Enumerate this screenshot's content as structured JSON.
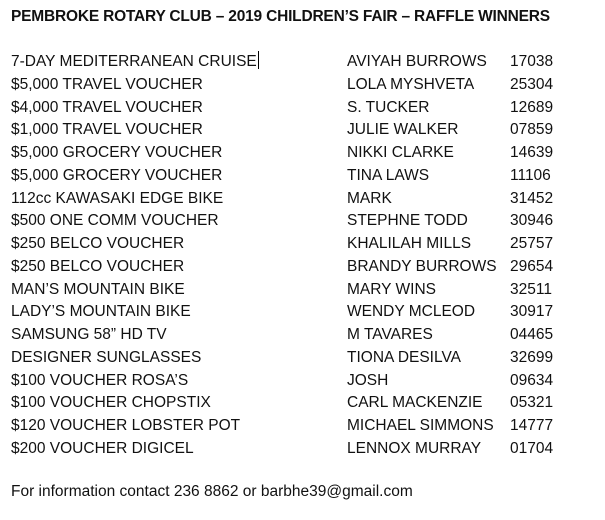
{
  "title": "PEMBROKE ROTARY CLUB – 2019 CHILDREN’S FAIR – RAFFLE WINNERS",
  "winners": [
    {
      "prize": "7-DAY MEDITERRANEAN CRUISE",
      "winner": "AVIYAH BURROWS",
      "ticket": "17038"
    },
    {
      "prize": "$5,000 TRAVEL VOUCHER",
      "winner": "LOLA MYSHVETA",
      "ticket": "25304"
    },
    {
      "prize": "$4,000 TRAVEL VOUCHER",
      "winner": " S. TUCKER",
      "ticket": "12689"
    },
    {
      "prize": "$1,000 TRAVEL VOUCHER",
      "winner": "JULIE WALKER",
      "ticket": "07859"
    },
    {
      "prize": "$5,000 GROCERY VOUCHER",
      "winner": "NIKKI CLARKE",
      "ticket": "14639"
    },
    {
      "prize": "$5,000 GROCERY VOUCHER",
      "winner": "TINA LAWS",
      "ticket": "11106"
    },
    {
      "prize": "112cc KAWASAKI EDGE BIKE",
      "winner": "MARK",
      "ticket": "31452"
    },
    {
      "prize": "$500 ONE COMM VOUCHER",
      "winner": "STEPHNE TODD",
      "ticket": "30946"
    },
    {
      "prize": "$250 BELCO VOUCHER",
      "winner": "KHALILAH MILLS",
      "ticket": "25757"
    },
    {
      "prize": "$250 BELCO VOUCHER",
      "winner": "BRANDY BURROWS",
      "ticket": "29654"
    },
    {
      "prize": "MAN’S MOUNTAIN BIKE",
      "winner": "MARY WINS",
      "ticket": "32511"
    },
    {
      "prize": "LADY’S MOUNTAIN BIKE",
      "winner": "WENDY MCLEOD",
      "ticket": "30917"
    },
    {
      "prize": "SAMSUNG 58” HD TV",
      "winner": "M TAVARES",
      "ticket": "04465"
    },
    {
      "prize": "DESIGNER SUNGLASSES",
      "winner": "TIONA DESILVA",
      "ticket": "32699"
    },
    {
      "prize": "$100 VOUCHER ROSA’S",
      "winner": "JOSH",
      "ticket": "09634"
    },
    {
      "prize": "$100 VOUCHER CHOPSTIX",
      "winner": "CARL MACKENZIE",
      "ticket": "05321"
    },
    {
      "prize": "$120 VOUCHER LOBSTER POT",
      "winner": "MICHAEL SIMMONS",
      "ticket": "14777"
    },
    {
      "prize": "$200 VOUCHER DIGICEL",
      "winner": "LENNOX MURRAY",
      "ticket": "01704"
    }
  ],
  "footer": "For information contact 236 8862 or barbhe39@gmail.com"
}
